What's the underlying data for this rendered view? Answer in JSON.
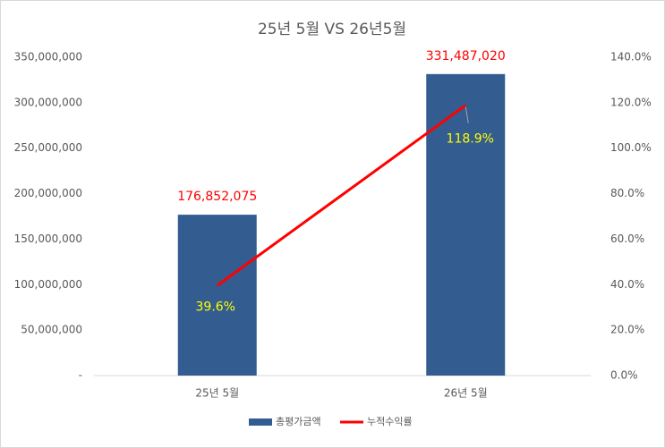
{
  "chart_data": {
    "type": "bar",
    "title": "25년 5월 VS 26년5월",
    "categories": [
      "25년 5월",
      "26년 5월"
    ],
    "series": [
      {
        "name": "총평가금액",
        "type": "bar",
        "color": "#335c91",
        "values": [
          176852075,
          331487020
        ],
        "value_labels": [
          "176,852,075",
          "331,487,020"
        ],
        "label_color": "#ff0000"
      },
      {
        "name": "누적수익률",
        "type": "line",
        "axis": "y2",
        "color": "#ff0000",
        "values": [
          39.6,
          118.9
        ],
        "value_labels": [
          "39.6%",
          "118.9%"
        ],
        "label_color": "#ffff00"
      }
    ],
    "ylim": [
      0,
      350000000
    ],
    "yticks": [
      {
        "value": 0,
        "label": "-"
      },
      {
        "value": 50000000,
        "label": "50,000,000"
      },
      {
        "value": 100000000,
        "label": "100,000,000"
      },
      {
        "value": 150000000,
        "label": "150,000,000"
      },
      {
        "value": 200000000,
        "label": "200,000,000"
      },
      {
        "value": 250000000,
        "label": "250,000,000"
      },
      {
        "value": 300000000,
        "label": "300,000,000"
      },
      {
        "value": 350000000,
        "label": "350,000,000"
      }
    ],
    "y2lim": [
      0,
      140
    ],
    "y2ticks": [
      {
        "value": 0,
        "label": "0.0%"
      },
      {
        "value": 20,
        "label": "20.0%"
      },
      {
        "value": 40,
        "label": "40.0%"
      },
      {
        "value": 60,
        "label": "60.0%"
      },
      {
        "value": 80,
        "label": "80.0%"
      },
      {
        "value": 100,
        "label": "100.0%"
      },
      {
        "value": 120,
        "label": "120.0%"
      },
      {
        "value": 140,
        "label": "140.0%"
      }
    ],
    "grid": false,
    "legend": "bottom"
  }
}
